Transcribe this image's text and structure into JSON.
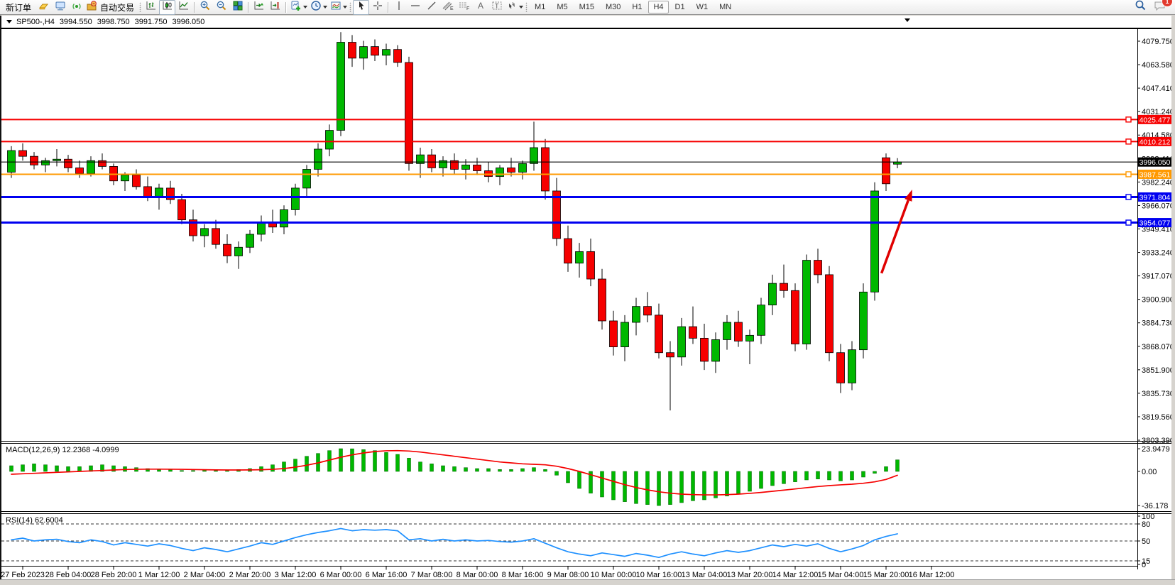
{
  "toolbar": {
    "new_order_label": "新订单",
    "autotrade_label": "自动交易",
    "timeframes": [
      "M1",
      "M5",
      "M15",
      "M30",
      "H1",
      "H4",
      "D1",
      "W1",
      "MN"
    ],
    "active_timeframe": "H4",
    "notification_badge": "1",
    "icon_names": [
      "ingot-icon",
      "history-terminal-icon",
      "signal-icon",
      "autotrade-icon",
      "bar-chart-icon",
      "candlestick-chart-icon",
      "line-chart-icon",
      "zoom-in-icon",
      "zoom-out-icon",
      "tile-windows-icon",
      "auto-scroll-icon",
      "chart-shift-icon",
      "indicators-icon",
      "periods-icon",
      "templates-icon",
      "cursor-icon",
      "crosshair-icon",
      "vertical-line-icon",
      "horizontal-line-icon",
      "trendline-icon",
      "channel-icon",
      "fibonacci-icon",
      "text-icon",
      "label-icon",
      "arrows-icon",
      "search-icon",
      "chat-icon"
    ]
  },
  "chart_header": {
    "symbol_period": "SP500-,H4",
    "open": "3994.550",
    "high": "3998.750",
    "low": "3991.750",
    "close": "3996.050"
  },
  "chart_data": {
    "type": "candlestick",
    "symbol": "SP500-",
    "period": "H4",
    "colors": {
      "up": "#00b800",
      "down": "#f60000",
      "outline": "#000000",
      "axis_text": "#000000"
    },
    "price_axis": {
      "top_value": 4079.75,
      "ticks": [
        "4079.750",
        "4063.580",
        "4047.410",
        "4031.240",
        "4014.580",
        "3998.410",
        "3982.240",
        "3966.070",
        "3949.410",
        "3933.240",
        "3917.070",
        "3900.900",
        "3884.730",
        "3868.070",
        "3851.900",
        "3835.730",
        "3819.560",
        "3803.390"
      ]
    },
    "x_labels": [
      "27 Feb 2023",
      "28 Feb 04:00",
      "28 Feb 20:00",
      "1 Mar 12:00",
      "2 Mar 04:00",
      "2 Mar 20:00",
      "3 Mar 12:00",
      "6 Mar 00:00",
      "6 Mar 16:00",
      "7 Mar 08:00",
      "8 Mar 00:00",
      "8 Mar 16:00",
      "9 Mar 08:00",
      "10 Mar 00:00",
      "10 Mar 16:00",
      "13 Mar 04:00",
      "13 Mar 20:00",
      "14 Mar 12:00",
      "15 Mar 04:00",
      "15 Mar 20:00",
      "16 Mar 12:00"
    ],
    "candles": [
      [
        3989,
        4007,
        3985,
        4004
      ],
      [
        4004,
        4009,
        3997,
        4000
      ],
      [
        4000,
        4003,
        3991,
        3994
      ],
      [
        3994,
        3999,
        3989,
        3997
      ],
      [
        3997,
        4005,
        3993,
        3998
      ],
      [
        3998,
        4001,
        3989,
        3992
      ],
      [
        3992,
        3997,
        3985,
        3988
      ],
      [
        3988,
        4000,
        3986,
        3997
      ],
      [
        3997,
        4002,
        3991,
        3993
      ],
      [
        3993,
        3995,
        3980,
        3983
      ],
      [
        3983,
        3989,
        3976,
        3987
      ],
      [
        3987,
        3991,
        3977,
        3979
      ],
      [
        3979,
        3986,
        3969,
        3972
      ],
      [
        3972,
        3981,
        3963,
        3978
      ],
      [
        3978,
        3983,
        3967,
        3970
      ],
      [
        3970,
        3974,
        3953,
        3956
      ],
      [
        3956,
        3963,
        3941,
        3945
      ],
      [
        3945,
        3953,
        3937,
        3950
      ],
      [
        3950,
        3956,
        3936,
        3939
      ],
      [
        3939,
        3946,
        3926,
        3931
      ],
      [
        3931,
        3941,
        3922,
        3937
      ],
      [
        3937,
        3949,
        3933,
        3946
      ],
      [
        3946,
        3959,
        3941,
        3954
      ],
      [
        3954,
        3963,
        3947,
        3951
      ],
      [
        3951,
        3966,
        3946,
        3963
      ],
      [
        3963,
        3981,
        3959,
        3978
      ],
      [
        3978,
        3994,
        3972,
        3991
      ],
      [
        3991,
        4009,
        3986,
        4005
      ],
      [
        4005,
        4022,
        4000,
        4018
      ],
      [
        4018,
        4086,
        4014,
        4079
      ],
      [
        4079,
        4084,
        4062,
        4068
      ],
      [
        4068,
        4080,
        4060,
        4076
      ],
      [
        4076,
        4081,
        4066,
        4070
      ],
      [
        4070,
        4078,
        4063,
        4074
      ],
      [
        4074,
        4077,
        4062,
        4065
      ],
      [
        4065,
        4069,
        3990,
        3995
      ],
      [
        3995,
        4006,
        3985,
        4001
      ],
      [
        4001,
        4005,
        3989,
        3992
      ],
      [
        3992,
        4000,
        3986,
        3997
      ],
      [
        3997,
        4002,
        3988,
        3991
      ],
      [
        3991,
        3998,
        3984,
        3994
      ],
      [
        3994,
        3999,
        3987,
        3990
      ],
      [
        3990,
        3996,
        3982,
        3986
      ],
      [
        3986,
        3994,
        3980,
        3992
      ],
      [
        3992,
        3999,
        3986,
        3989
      ],
      [
        3989,
        3997,
        3984,
        3995
      ],
      [
        3995,
        4024,
        3990,
        4006
      ],
      [
        4006,
        4012,
        3970,
        3976
      ],
      [
        3976,
        3985,
        3938,
        3943
      ],
      [
        3943,
        3952,
        3920,
        3926
      ],
      [
        3926,
        3940,
        3916,
        3934
      ],
      [
        3934,
        3943,
        3910,
        3915
      ],
      [
        3915,
        3922,
        3880,
        3886
      ],
      [
        3886,
        3893,
        3862,
        3868
      ],
      [
        3868,
        3890,
        3858,
        3885
      ],
      [
        3885,
        3902,
        3876,
        3896
      ],
      [
        3896,
        3906,
        3885,
        3890
      ],
      [
        3890,
        3898,
        3860,
        3864
      ],
      [
        3864,
        3872,
        3824,
        3861
      ],
      [
        3861,
        3888,
        3855,
        3882
      ],
      [
        3882,
        3896,
        3870,
        3874
      ],
      [
        3874,
        3884,
        3852,
        3858
      ],
      [
        3858,
        3878,
        3850,
        3873
      ],
      [
        3873,
        3890,
        3866,
        3885
      ],
      [
        3885,
        3893,
        3868,
        3872
      ],
      [
        3872,
        3880,
        3856,
        3876
      ],
      [
        3876,
        3902,
        3870,
        3897
      ],
      [
        3897,
        3918,
        3890,
        3912
      ],
      [
        3912,
        3925,
        3902,
        3907
      ],
      [
        3907,
        3912,
        3865,
        3870
      ],
      [
        3870,
        3932,
        3866,
        3928
      ],
      [
        3928,
        3936,
        3912,
        3918
      ],
      [
        3918,
        3924,
        3858,
        3864
      ],
      [
        3864,
        3870,
        3836,
        3843
      ],
      [
        3843,
        3872,
        3838,
        3866
      ],
      [
        3866,
        3912,
        3860,
        3906
      ],
      [
        3906,
        3982,
        3900,
        3976
      ],
      [
        3999,
        4002,
        3976,
        3981
      ],
      [
        3994.55,
        3998.75,
        3991.75,
        3996.05
      ]
    ],
    "hlines": [
      {
        "price": 4025.477,
        "label": "4025.477",
        "color": "#f60000",
        "width": 2
      },
      {
        "price": 4010.212,
        "label": "4010.212",
        "color": "#f60000",
        "width": 2
      },
      {
        "price": 3987.561,
        "label": "3987.561",
        "color": "#ff9900",
        "width": 2
      },
      {
        "price": 3971.804,
        "label": "3971.804",
        "color": "#0000f0",
        "width": 3
      },
      {
        "price": 3954.077,
        "label": "3954.077",
        "color": "#0000f0",
        "width": 3
      }
    ],
    "current_price": {
      "price": 3996.05,
      "label": "3996.050",
      "color": "#000000"
    },
    "annotation_arrow": {
      "from_bar": 76.6,
      "from_price": 3919,
      "to_bar": 79.3,
      "to_price": 3977,
      "color": "#e00000"
    },
    "macd": {
      "name": "MACD(12,26,9)",
      "value_main": "12.2368",
      "value_signal": "-4.0999",
      "axis": [
        {
          "label": "23.9479",
          "value": 23.9479
        },
        {
          "label": "0.00",
          "value": 0
        },
        {
          "label": "-36.178",
          "value": -36.178
        }
      ],
      "hist_color": "#00b800",
      "signal_color": "#f60000",
      "histogram": [
        6,
        7,
        8,
        7,
        6,
        5,
        5,
        6,
        7,
        6,
        5,
        4,
        3,
        2,
        2,
        1,
        1,
        2,
        1,
        1,
        2,
        3,
        5,
        7,
        10,
        13,
        16,
        19,
        22,
        24,
        23.9,
        23,
        22,
        20,
        18,
        14,
        10,
        8,
        6,
        5,
        4,
        3,
        3,
        2,
        2,
        3,
        4,
        2,
        -4,
        -12,
        -18,
        -23,
        -27,
        -30,
        -32,
        -34,
        -35,
        -36.1,
        -35,
        -33,
        -31,
        -30,
        -28,
        -26,
        -24,
        -21,
        -18,
        -15,
        -13,
        -11,
        -9,
        -8,
        -9,
        -10,
        -9,
        -6,
        -2,
        5,
        12.24
      ],
      "signal": [
        -3,
        -2.5,
        -2,
        -1.5,
        -1,
        -0.5,
        0,
        0.5,
        1,
        1.5,
        2,
        2.2,
        2.4,
        2.4,
        2.3,
        2.2,
        2,
        1.8,
        1.6,
        1.5,
        1.5,
        1.6,
        1.8,
        2.2,
        3,
        4.5,
        6.5,
        9,
        12,
        15,
        17.5,
        19.5,
        21,
        21.8,
        22,
        21.5,
        20.5,
        19,
        17.5,
        16,
        14.5,
        13,
        11.5,
        10,
        9,
        8,
        7.5,
        7,
        5.5,
        3,
        0,
        -3.5,
        -7,
        -10.5,
        -14,
        -17,
        -19.5,
        -21.5,
        -23,
        -24,
        -24.5,
        -24.8,
        -24.8,
        -24.5,
        -24,
        -23.2,
        -22.2,
        -21,
        -19.8,
        -18.5,
        -17.2,
        -16,
        -15,
        -14.2,
        -13.5,
        -12.5,
        -11,
        -8.5,
        -4.1
      ]
    },
    "rsi": {
      "name": "RSI(14)",
      "value": "62.6004",
      "line_color": "#1e90ff",
      "levels": [
        {
          "label": "100",
          "value": 100,
          "dashed": false
        },
        {
          "label": "80",
          "value": 80,
          "dashed": true
        },
        {
          "label": "50",
          "value": 50,
          "dashed": true
        },
        {
          "label": "15",
          "value": 15,
          "dashed": true
        },
        {
          "label": "0",
          "value": 0,
          "dashed": false
        }
      ],
      "values": [
        52,
        55,
        50,
        52,
        53,
        49,
        47,
        52,
        49,
        43,
        47,
        44,
        41,
        45,
        42,
        37,
        33,
        38,
        35,
        31,
        36,
        41,
        47,
        44,
        50,
        56,
        61,
        65,
        68,
        72,
        68,
        70,
        69,
        70,
        68,
        52,
        54,
        50,
        53,
        50,
        52,
        50,
        51,
        49,
        48,
        50,
        54,
        46,
        38,
        31,
        27,
        24,
        29,
        26,
        23,
        28,
        25,
        21,
        27,
        31,
        27,
        24,
        29,
        33,
        30,
        33,
        38,
        43,
        40,
        44,
        41,
        45,
        37,
        31,
        36,
        42,
        52,
        58,
        62.6
      ]
    }
  }
}
